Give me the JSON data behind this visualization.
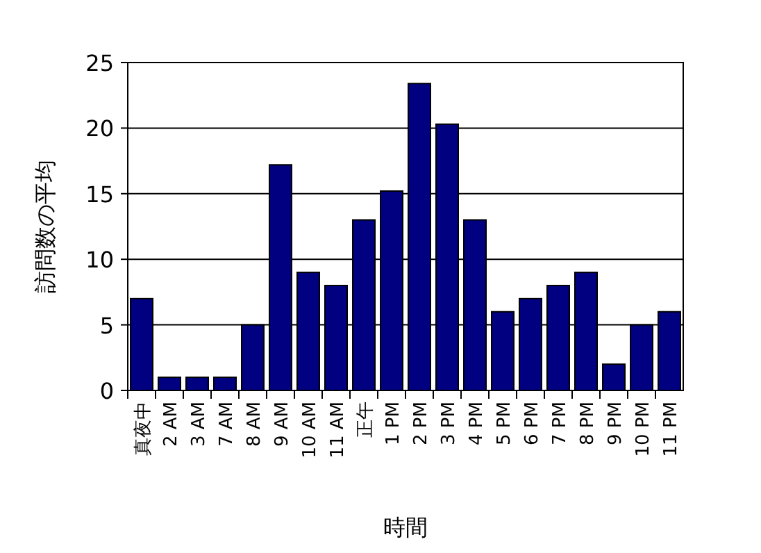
{
  "chart_data": {
    "type": "bar",
    "xlabel": "時間",
    "ylabel": "訪問数の平均",
    "categories": [
      "真夜中",
      "2 AM",
      "3 AM",
      "7 AM",
      "8 AM",
      "9 AM",
      "10 AM",
      "11 AM",
      "正午",
      "1 PM",
      "2 PM",
      "3 PM",
      "4 PM",
      "5 PM",
      "6 PM",
      "7 PM",
      "8 PM",
      "9 PM",
      "10 PM",
      "11 PM"
    ],
    "values": [
      7,
      1,
      1,
      1,
      5,
      17.2,
      9,
      8,
      13,
      15.2,
      23.4,
      20.3,
      13,
      6,
      7,
      8,
      9,
      2,
      5,
      6
    ],
    "color": "#000080",
    "ylim": [
      0,
      25
    ],
    "yticks": [
      0,
      5,
      10,
      15,
      20,
      25
    ],
    "grid": "y"
  }
}
